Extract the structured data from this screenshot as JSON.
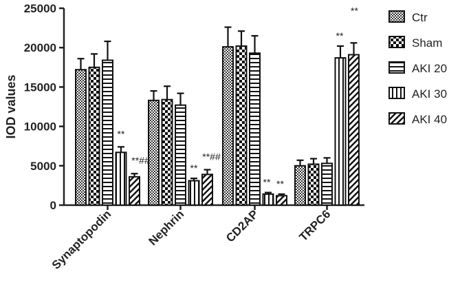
{
  "chart_data": {
    "type": "bar",
    "ylabel": "IOD values",
    "xlabel": "",
    "title": "",
    "ylim": [
      0,
      25000
    ],
    "yticks": [
      0,
      5000,
      10000,
      15000,
      20000,
      25000
    ],
    "categories": [
      "Synaptopodin",
      "Nephrin",
      "CD2AP",
      "TRPC6"
    ],
    "legend_position": "right",
    "series": [
      {
        "name": "Ctr",
        "pattern": "checker",
        "values": [
          17200,
          13300,
          20100,
          5000
        ],
        "errors": [
          1400,
          1200,
          2500,
          700
        ]
      },
      {
        "name": "Sham",
        "pattern": "bigchecker",
        "values": [
          17500,
          13400,
          20200,
          5200
        ],
        "errors": [
          1700,
          1700,
          1900,
          700
        ]
      },
      {
        "name": "AKI 20",
        "pattern": "hstripes",
        "values": [
          18400,
          12700,
          19300,
          5300
        ],
        "errors": [
          2400,
          1500,
          2200,
          700
        ]
      },
      {
        "name": "AKI 30",
        "pattern": "vstripes",
        "values": [
          6700,
          3100,
          1400,
          18700
        ],
        "errors": [
          700,
          300,
          200,
          1500
        ]
      },
      {
        "name": "AKI 40",
        "pattern": "diagonal",
        "values": [
          3600,
          3900,
          1200,
          19100
        ],
        "errors": [
          400,
          600,
          200,
          1500
        ]
      }
    ],
    "annotations": [
      {
        "category": 0,
        "series": 3,
        "text": "**"
      },
      {
        "category": 0,
        "series": 4,
        "text": "**##"
      },
      {
        "category": 1,
        "series": 3,
        "text": "**"
      },
      {
        "category": 1,
        "series": 4,
        "text": "**##"
      },
      {
        "category": 2,
        "series": 3,
        "text": "**"
      },
      {
        "category": 2,
        "series": 4,
        "text": "**"
      },
      {
        "category": 3,
        "series": 3,
        "text": "**"
      },
      {
        "category": 3,
        "series": 4,
        "text": "**"
      }
    ]
  }
}
